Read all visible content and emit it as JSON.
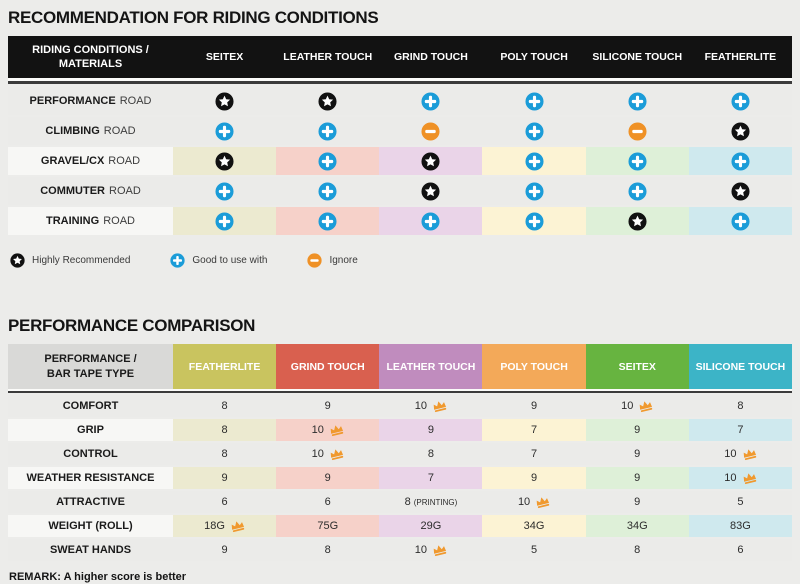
{
  "colors": {
    "page_bg": "#ececea",
    "header1_bg": "#121212",
    "row_gray": "#ebebe9",
    "label_white": "#f7f7f5",
    "cell_light": [
      "#ecead0",
      "#f6d1c9",
      "#ead4e8",
      "#fcf3d4",
      "#def0d8",
      "#cfe9ee"
    ],
    "icon_star": "#111111",
    "icon_plus": "#1b9cd8",
    "icon_minus": "#ef9126",
    "crown": "#f0992e"
  },
  "chart_data": [
    {
      "type": "table",
      "title": "RECOMMENDATION FOR RIDING CONDITIONS",
      "header_label_line1": "RIDING CONDITIONS /",
      "header_label_line2": "MATERIALS",
      "columns": [
        "SEITEX",
        "LEATHER TOUCH",
        "GRIND TOUCH",
        "POLY TOUCH",
        "SILICONE TOUCH",
        "FEATHERLITE"
      ],
      "rows": [
        {
          "label_bold": "PERFORMANCE",
          "label_rest": "ROAD",
          "colored": false,
          "cells": [
            "star",
            "star",
            "plus",
            "plus",
            "plus",
            "plus"
          ]
        },
        {
          "label_bold": "CLIMBING",
          "label_rest": "ROAD",
          "colored": false,
          "cells": [
            "plus",
            "plus",
            "minus",
            "plus",
            "minus",
            "star"
          ]
        },
        {
          "label_bold": "GRAVEL/CX",
          "label_rest": "ROAD",
          "colored": true,
          "cells": [
            "star",
            "plus",
            "star",
            "plus",
            "plus",
            "plus"
          ]
        },
        {
          "label_bold": "COMMUTER",
          "label_rest": "ROAD",
          "colored": false,
          "cells": [
            "plus",
            "plus",
            "star",
            "plus",
            "plus",
            "star"
          ]
        },
        {
          "label_bold": "TRAINING",
          "label_rest": "ROAD",
          "colored": true,
          "cells": [
            "plus",
            "plus",
            "plus",
            "plus",
            "star",
            "plus"
          ]
        }
      ],
      "legend": [
        {
          "icon": "star",
          "label": "Highly Recommended"
        },
        {
          "icon": "plus",
          "label": "Good to use with"
        },
        {
          "icon": "minus",
          "label": "Ignore"
        }
      ]
    },
    {
      "type": "table",
      "title": "PERFORMANCE COMPARISON",
      "header_label_line1": "PERFORMANCE /",
      "header_label_line2": "BAR TAPE TYPE",
      "columns": [
        {
          "name": "FEATHERLITE",
          "color": "#c9c45f"
        },
        {
          "name": "GRIND TOUCH",
          "color": "#d9604f"
        },
        {
          "name": "LEATHER TOUCH",
          "color": "#c08cbe"
        },
        {
          "name": "POLY TOUCH",
          "color": "#f3a959"
        },
        {
          "name": "SEITEX",
          "color": "#67b440"
        },
        {
          "name": "SILICONE TOUCH",
          "color": "#3cb4c7"
        }
      ],
      "rows": [
        {
          "label": "COMFORT",
          "colored": false,
          "cells": [
            {
              "v": "8"
            },
            {
              "v": "9"
            },
            {
              "v": "10",
              "crown": true
            },
            {
              "v": "9"
            },
            {
              "v": "10",
              "crown": true
            },
            {
              "v": "8"
            }
          ]
        },
        {
          "label": "GRIP",
          "colored": true,
          "cells": [
            {
              "v": "8"
            },
            {
              "v": "10",
              "crown": true
            },
            {
              "v": "9"
            },
            {
              "v": "7"
            },
            {
              "v": "9"
            },
            {
              "v": "7"
            }
          ]
        },
        {
          "label": "CONTROL",
          "colored": false,
          "cells": [
            {
              "v": "8"
            },
            {
              "v": "10",
              "crown": true
            },
            {
              "v": "8"
            },
            {
              "v": "7"
            },
            {
              "v": "9"
            },
            {
              "v": "10",
              "crown": true
            }
          ]
        },
        {
          "label": "WEATHER RESISTANCE",
          "colored": true,
          "cells": [
            {
              "v": "9"
            },
            {
              "v": "9"
            },
            {
              "v": "7"
            },
            {
              "v": "9"
            },
            {
              "v": "9"
            },
            {
              "v": "10",
              "crown": true
            }
          ]
        },
        {
          "label": "ATTRACTIVE",
          "colored": false,
          "cells": [
            {
              "v": "6"
            },
            {
              "v": "6"
            },
            {
              "v": "8",
              "suffix": "(PRINTING)"
            },
            {
              "v": "10",
              "crown": true
            },
            {
              "v": "9"
            },
            {
              "v": "5"
            }
          ]
        },
        {
          "label": "WEIGHT (ROLL)",
          "colored": true,
          "cells": [
            {
              "v": "18G",
              "crown": true
            },
            {
              "v": "75G"
            },
            {
              "v": "29G"
            },
            {
              "v": "34G"
            },
            {
              "v": "34G"
            },
            {
              "v": "83G"
            }
          ]
        },
        {
          "label": "SWEAT HANDS",
          "colored": false,
          "cells": [
            {
              "v": "9"
            },
            {
              "v": "8"
            },
            {
              "v": "10",
              "crown": true
            },
            {
              "v": "5"
            },
            {
              "v": "8"
            },
            {
              "v": "6"
            }
          ]
        }
      ],
      "remark": "REMARK: A higher score is better"
    }
  ]
}
